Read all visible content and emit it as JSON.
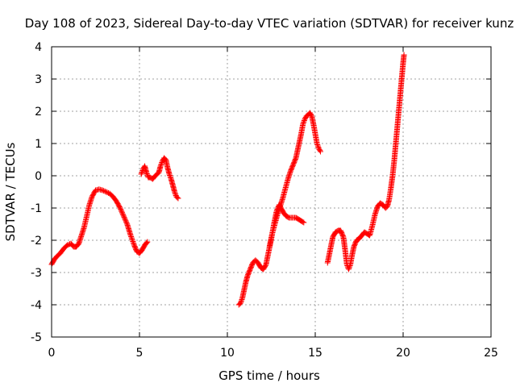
{
  "chart_data": {
    "type": "scatter",
    "title": "Day 108 of 2023, Sidereal Day-to-day VTEC variation (SDTVAR) for receiver kunz",
    "xlabel": "GPS time / hours",
    "ylabel": "SDTVAR / TECUs",
    "xlim": [
      0,
      25
    ],
    "ylim": [
      -5,
      4
    ],
    "x_ticks": [
      0,
      5,
      10,
      15,
      20,
      25
    ],
    "y_ticks": [
      -5,
      -4,
      -3,
      -2,
      -1,
      0,
      1,
      2,
      3,
      4
    ],
    "x_tick_labels": [
      "0",
      "5",
      "10",
      "15",
      "20",
      "25"
    ],
    "y_tick_labels": [
      "-5",
      "-4",
      "-3",
      "-2",
      "-1",
      "0",
      "1",
      "2",
      "3",
      "4"
    ],
    "grid": true,
    "legend": "none",
    "marker": "+",
    "series": [
      {
        "color": "#ff0000",
        "segments": [
          [
            [
              0.0,
              -2.75
            ],
            [
              0.15,
              -2.6
            ],
            [
              0.3,
              -2.5
            ],
            [
              0.5,
              -2.4
            ],
            [
              0.7,
              -2.25
            ],
            [
              0.9,
              -2.15
            ],
            [
              1.1,
              -2.1
            ],
            [
              1.25,
              -2.2
            ],
            [
              1.4,
              -2.2
            ],
            [
              1.55,
              -2.1
            ],
            [
              1.7,
              -1.85
            ],
            [
              1.85,
              -1.6
            ],
            [
              2.0,
              -1.25
            ],
            [
              2.15,
              -0.9
            ],
            [
              2.3,
              -0.65
            ],
            [
              2.5,
              -0.45
            ],
            [
              2.7,
              -0.42
            ],
            [
              2.9,
              -0.45
            ],
            [
              3.1,
              -0.5
            ],
            [
              3.3,
              -0.55
            ],
            [
              3.5,
              -0.65
            ],
            [
              3.7,
              -0.8
            ],
            [
              3.9,
              -1.0
            ],
            [
              4.1,
              -1.25
            ],
            [
              4.3,
              -1.5
            ],
            [
              4.5,
              -1.85
            ],
            [
              4.7,
              -2.15
            ],
            [
              4.85,
              -2.35
            ],
            [
              5.0,
              -2.4
            ],
            [
              5.15,
              -2.3
            ],
            [
              5.3,
              -2.15
            ],
            [
              5.45,
              -2.05
            ]
          ],
          [
            [
              5.1,
              0.05
            ],
            [
              5.2,
              0.2
            ],
            [
              5.3,
              0.3
            ],
            [
              5.4,
              0.1
            ],
            [
              5.5,
              -0.05
            ],
            [
              5.6,
              -0.05
            ],
            [
              5.75,
              -0.1
            ],
            [
              5.9,
              0.0
            ],
            [
              6.0,
              0.05
            ],
            [
              6.1,
              0.1
            ],
            [
              6.2,
              0.3
            ],
            [
              6.3,
              0.45
            ],
            [
              6.4,
              0.55
            ],
            [
              6.5,
              0.5
            ],
            [
              6.6,
              0.25
            ],
            [
              6.7,
              0.05
            ],
            [
              6.8,
              -0.1
            ],
            [
              6.9,
              -0.3
            ],
            [
              7.0,
              -0.5
            ],
            [
              7.1,
              -0.65
            ],
            [
              7.2,
              -0.7
            ]
          ],
          [
            [
              10.65,
              -4.0
            ],
            [
              10.75,
              -3.95
            ],
            [
              10.85,
              -3.8
            ],
            [
              10.95,
              -3.55
            ],
            [
              11.05,
              -3.3
            ],
            [
              11.15,
              -3.1
            ],
            [
              11.3,
              -2.9
            ],
            [
              11.45,
              -2.7
            ],
            [
              11.6,
              -2.62
            ],
            [
              11.75,
              -2.7
            ],
            [
              11.9,
              -2.85
            ],
            [
              12.05,
              -2.9
            ],
            [
              12.2,
              -2.75
            ],
            [
              12.35,
              -2.35
            ],
            [
              12.5,
              -1.95
            ],
            [
              12.65,
              -1.5
            ],
            [
              12.8,
              -1.1
            ],
            [
              12.95,
              -0.9
            ],
            [
              13.05,
              -1.0
            ],
            [
              13.2,
              -1.15
            ],
            [
              13.35,
              -1.25
            ],
            [
              13.5,
              -1.3
            ],
            [
              13.7,
              -1.3
            ],
            [
              13.9,
              -1.3
            ],
            [
              14.05,
              -1.35
            ],
            [
              14.2,
              -1.4
            ],
            [
              14.35,
              -1.45
            ]
          ],
          [
            [
              12.4,
              -2.2
            ],
            [
              12.55,
              -1.8
            ],
            [
              12.7,
              -1.5
            ],
            [
              12.85,
              -1.2
            ],
            [
              13.0,
              -0.95
            ],
            [
              13.15,
              -0.7
            ],
            [
              13.3,
              -0.4
            ],
            [
              13.45,
              -0.1
            ],
            [
              13.6,
              0.15
            ],
            [
              13.75,
              0.35
            ],
            [
              13.9,
              0.55
            ],
            [
              14.0,
              0.8
            ],
            [
              14.1,
              1.05
            ],
            [
              14.2,
              1.3
            ],
            [
              14.3,
              1.6
            ],
            [
              14.4,
              1.75
            ],
            [
              14.5,
              1.85
            ],
            [
              14.6,
              1.9
            ],
            [
              14.7,
              1.95
            ],
            [
              14.8,
              1.85
            ],
            [
              14.9,
              1.6
            ],
            [
              15.0,
              1.3
            ],
            [
              15.1,
              1.0
            ],
            [
              15.2,
              0.85
            ],
            [
              15.3,
              0.75
            ]
          ],
          [
            [
              15.7,
              -2.7
            ],
            [
              15.85,
              -2.3
            ],
            [
              16.0,
              -1.9
            ],
            [
              16.15,
              -1.75
            ],
            [
              16.3,
              -1.7
            ],
            [
              16.45,
              -1.7
            ],
            [
              16.6,
              -1.9
            ],
            [
              16.7,
              -2.3
            ],
            [
              16.8,
              -2.75
            ],
            [
              16.9,
              -2.9
            ],
            [
              17.0,
              -2.75
            ],
            [
              17.1,
              -2.45
            ],
            [
              17.2,
              -2.2
            ],
            [
              17.35,
              -2.0
            ],
            [
              17.5,
              -1.95
            ],
            [
              17.65,
              -1.85
            ],
            [
              17.8,
              -1.75
            ],
            [
              17.95,
              -1.8
            ],
            [
              18.1,
              -1.85
            ],
            [
              18.25,
              -1.55
            ],
            [
              18.4,
              -1.2
            ],
            [
              18.55,
              -0.95
            ],
            [
              18.7,
              -0.85
            ],
            [
              18.85,
              -0.9
            ],
            [
              19.0,
              -1.0
            ],
            [
              19.1,
              -0.95
            ],
            [
              19.2,
              -0.75
            ],
            [
              19.3,
              -0.4
            ],
            [
              19.4,
              0.0
            ],
            [
              19.5,
              0.5
            ],
            [
              19.6,
              1.1
            ],
            [
              19.7,
              1.7
            ],
            [
              19.8,
              2.3
            ],
            [
              19.9,
              2.9
            ],
            [
              20.0,
              3.5
            ],
            [
              20.05,
              3.75
            ]
          ]
        ]
      }
    ]
  }
}
